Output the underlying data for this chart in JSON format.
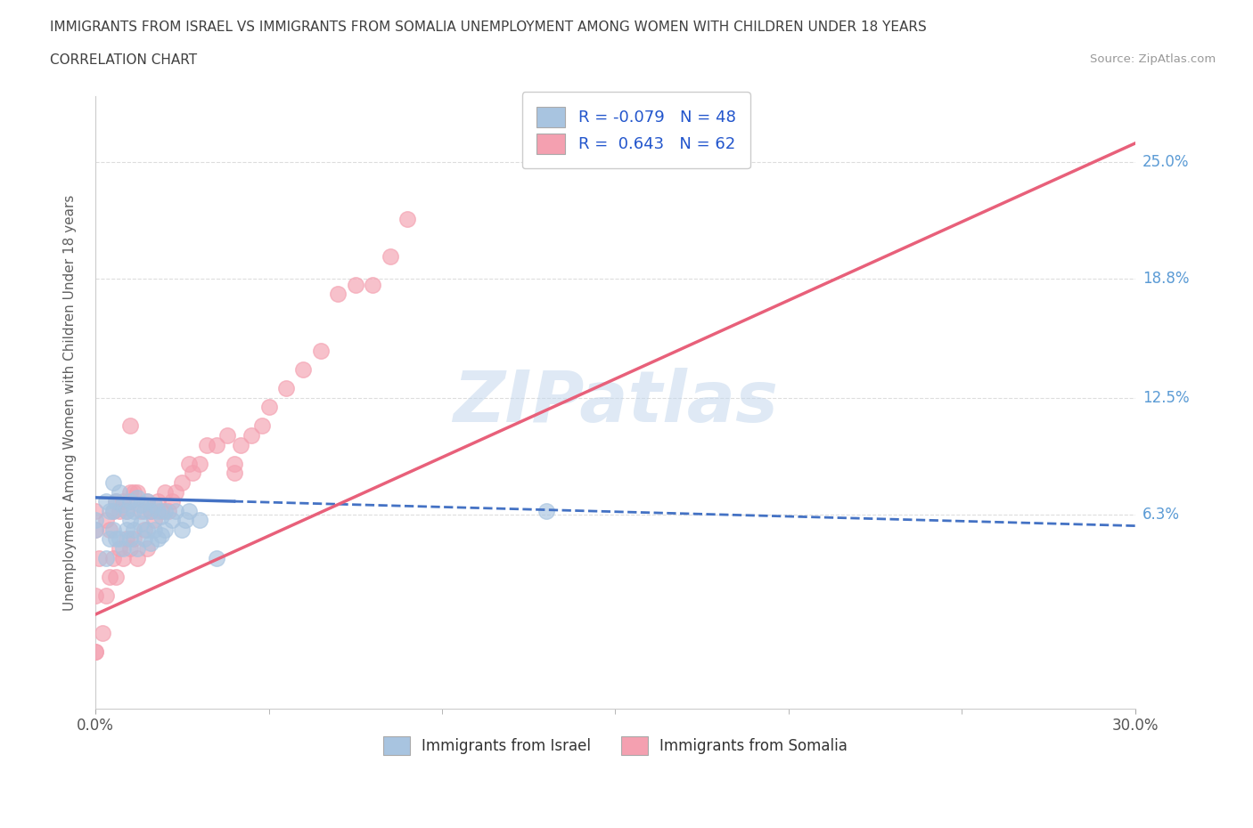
{
  "title_line1": "IMMIGRANTS FROM ISRAEL VS IMMIGRANTS FROM SOMALIA UNEMPLOYMENT AMONG WOMEN WITH CHILDREN UNDER 18 YEARS",
  "title_line2": "CORRELATION CHART",
  "source_text": "Source: ZipAtlas.com",
  "ylabel": "Unemployment Among Women with Children Under 18 years",
  "xlim": [
    0.0,
    0.3
  ],
  "ylim": [
    -0.04,
    0.285
  ],
  "ytick_values": [
    0.063,
    0.125,
    0.188,
    0.25
  ],
  "ytick_labels": [
    "6.3%",
    "12.5%",
    "18.8%",
    "25.0%"
  ],
  "israel_color": "#a8c4e0",
  "israel_edge_color": "#7aadd4",
  "somalia_color": "#f4a0b0",
  "somalia_edge_color": "#e87090",
  "israel_R": -0.079,
  "israel_N": 48,
  "somalia_R": 0.643,
  "somalia_N": 62,
  "watermark": "ZIPatlas",
  "legend_label_israel": "Immigrants from Israel",
  "legend_label_somalia": "Immigrants from Somalia",
  "background_color": "#ffffff",
  "grid_color": "#dddddd",
  "title_color": "#404040",
  "axis_label_color": "#606060",
  "right_tick_color": "#5b9bd5",
  "israel_line_color": "#4472c4",
  "somalia_line_color": "#e8607a",
  "israel_scatter_x": [
    0.0,
    0.0,
    0.003,
    0.003,
    0.004,
    0.004,
    0.005,
    0.005,
    0.005,
    0.006,
    0.006,
    0.007,
    0.007,
    0.008,
    0.008,
    0.009,
    0.009,
    0.01,
    0.01,
    0.01,
    0.011,
    0.011,
    0.012,
    0.012,
    0.013,
    0.013,
    0.014,
    0.014,
    0.015,
    0.015,
    0.016,
    0.016,
    0.017,
    0.017,
    0.018,
    0.018,
    0.019,
    0.019,
    0.02,
    0.02,
    0.022,
    0.023,
    0.025,
    0.026,
    0.027,
    0.03,
    0.035,
    0.13
  ],
  "israel_scatter_y": [
    0.06,
    0.055,
    0.07,
    0.04,
    0.065,
    0.05,
    0.08,
    0.055,
    0.065,
    0.07,
    0.05,
    0.075,
    0.05,
    0.068,
    0.045,
    0.065,
    0.055,
    0.07,
    0.06,
    0.05,
    0.065,
    0.055,
    0.072,
    0.045,
    0.068,
    0.058,
    0.065,
    0.05,
    0.07,
    0.055,
    0.065,
    0.048,
    0.068,
    0.055,
    0.065,
    0.05,
    0.062,
    0.052,
    0.065,
    0.055,
    0.06,
    0.065,
    0.055,
    0.06,
    0.065,
    0.06,
    0.04,
    0.065
  ],
  "somalia_scatter_x": [
    0.0,
    0.0,
    0.001,
    0.002,
    0.003,
    0.003,
    0.004,
    0.004,
    0.005,
    0.005,
    0.006,
    0.006,
    0.007,
    0.007,
    0.008,
    0.008,
    0.009,
    0.009,
    0.01,
    0.01,
    0.011,
    0.011,
    0.012,
    0.012,
    0.013,
    0.014,
    0.015,
    0.015,
    0.016,
    0.017,
    0.018,
    0.019,
    0.02,
    0.021,
    0.022,
    0.023,
    0.025,
    0.027,
    0.028,
    0.03,
    0.032,
    0.035,
    0.038,
    0.04,
    0.04,
    0.042,
    0.045,
    0.048,
    0.05,
    0.055,
    0.06,
    0.065,
    0.07,
    0.075,
    0.08,
    0.085,
    0.09,
    0.01,
    0.0,
    0.0,
    0.0,
    0.01
  ],
  "somalia_scatter_y": [
    0.02,
    -0.01,
    0.04,
    0.0,
    0.06,
    0.02,
    0.055,
    0.03,
    0.065,
    0.04,
    0.07,
    0.03,
    0.065,
    0.045,
    0.07,
    0.04,
    0.065,
    0.05,
    0.07,
    0.045,
    0.075,
    0.05,
    0.075,
    0.04,
    0.065,
    0.055,
    0.07,
    0.045,
    0.065,
    0.06,
    0.07,
    0.065,
    0.075,
    0.065,
    0.07,
    0.075,
    0.08,
    0.09,
    0.085,
    0.09,
    0.1,
    0.1,
    0.105,
    0.085,
    0.09,
    0.1,
    0.105,
    0.11,
    0.12,
    0.13,
    0.14,
    0.15,
    0.18,
    0.185,
    0.185,
    0.2,
    0.22,
    0.075,
    -0.01,
    0.065,
    0.055,
    0.11
  ],
  "israel_line_x0": 0.0,
  "israel_line_x1": 0.3,
  "israel_line_y0": 0.072,
  "israel_line_y1": 0.057,
  "somalia_line_x0": 0.0,
  "somalia_line_x1": 0.3,
  "somalia_line_y0": 0.01,
  "somalia_line_y1": 0.26
}
